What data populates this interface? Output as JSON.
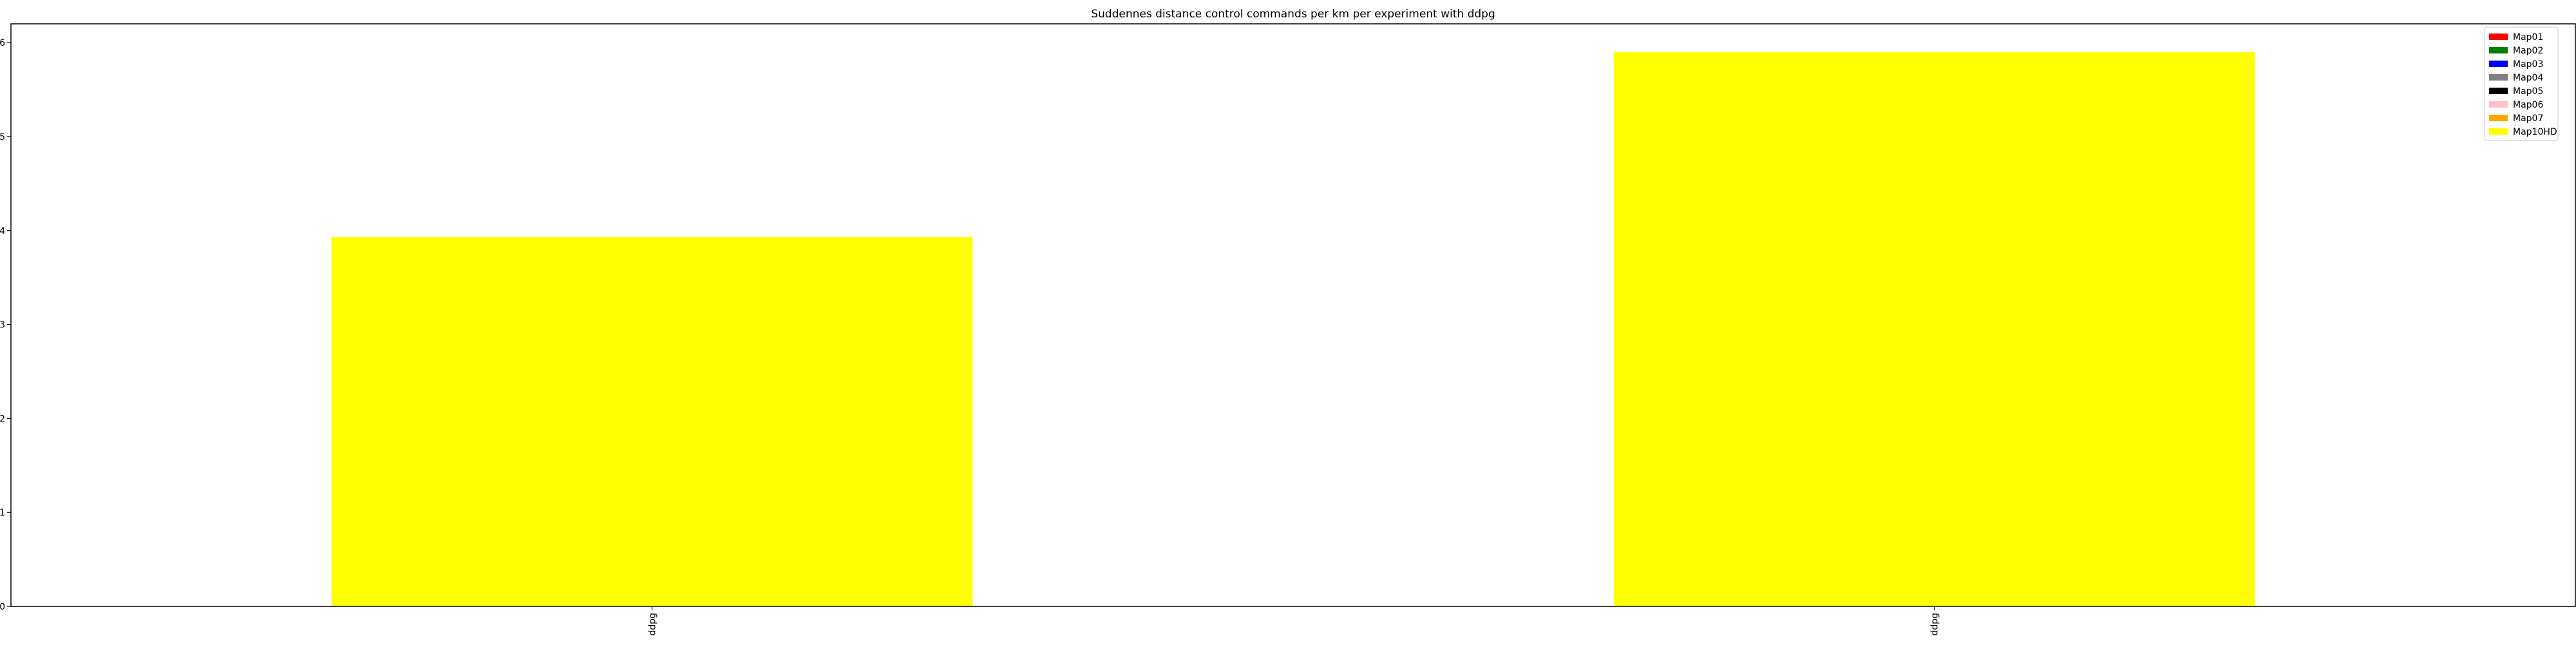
{
  "chart_data": {
    "type": "bar",
    "title": "Suddennes distance control commands per km per experiment with ddpg",
    "xlabel": "",
    "ylabel": "",
    "categories": [
      "ddpg",
      "ddpg"
    ],
    "ylim": [
      0,
      6.2
    ],
    "yticks": [
      0,
      1,
      2,
      3,
      4,
      5,
      6
    ],
    "grid": false,
    "legend_position": "top-right",
    "series": [
      {
        "name": "Map01",
        "color": "#ff0000",
        "values": [
          0,
          0
        ]
      },
      {
        "name": "Map02",
        "color": "#008000",
        "values": [
          0,
          0
        ]
      },
      {
        "name": "Map03",
        "color": "#0000ff",
        "values": [
          0,
          0
        ]
      },
      {
        "name": "Map04",
        "color": "#808080",
        "values": [
          0,
          0
        ]
      },
      {
        "name": "Map05",
        "color": "#000000",
        "values": [
          0,
          0
        ]
      },
      {
        "name": "Map06",
        "color": "#ffc0cb",
        "values": [
          0,
          0
        ]
      },
      {
        "name": "Map07",
        "color": "#ffa500",
        "values": [
          0,
          0
        ]
      },
      {
        "name": "Map10HD",
        "color": "#ffff00",
        "values": [
          3.93,
          5.9
        ]
      }
    ]
  }
}
